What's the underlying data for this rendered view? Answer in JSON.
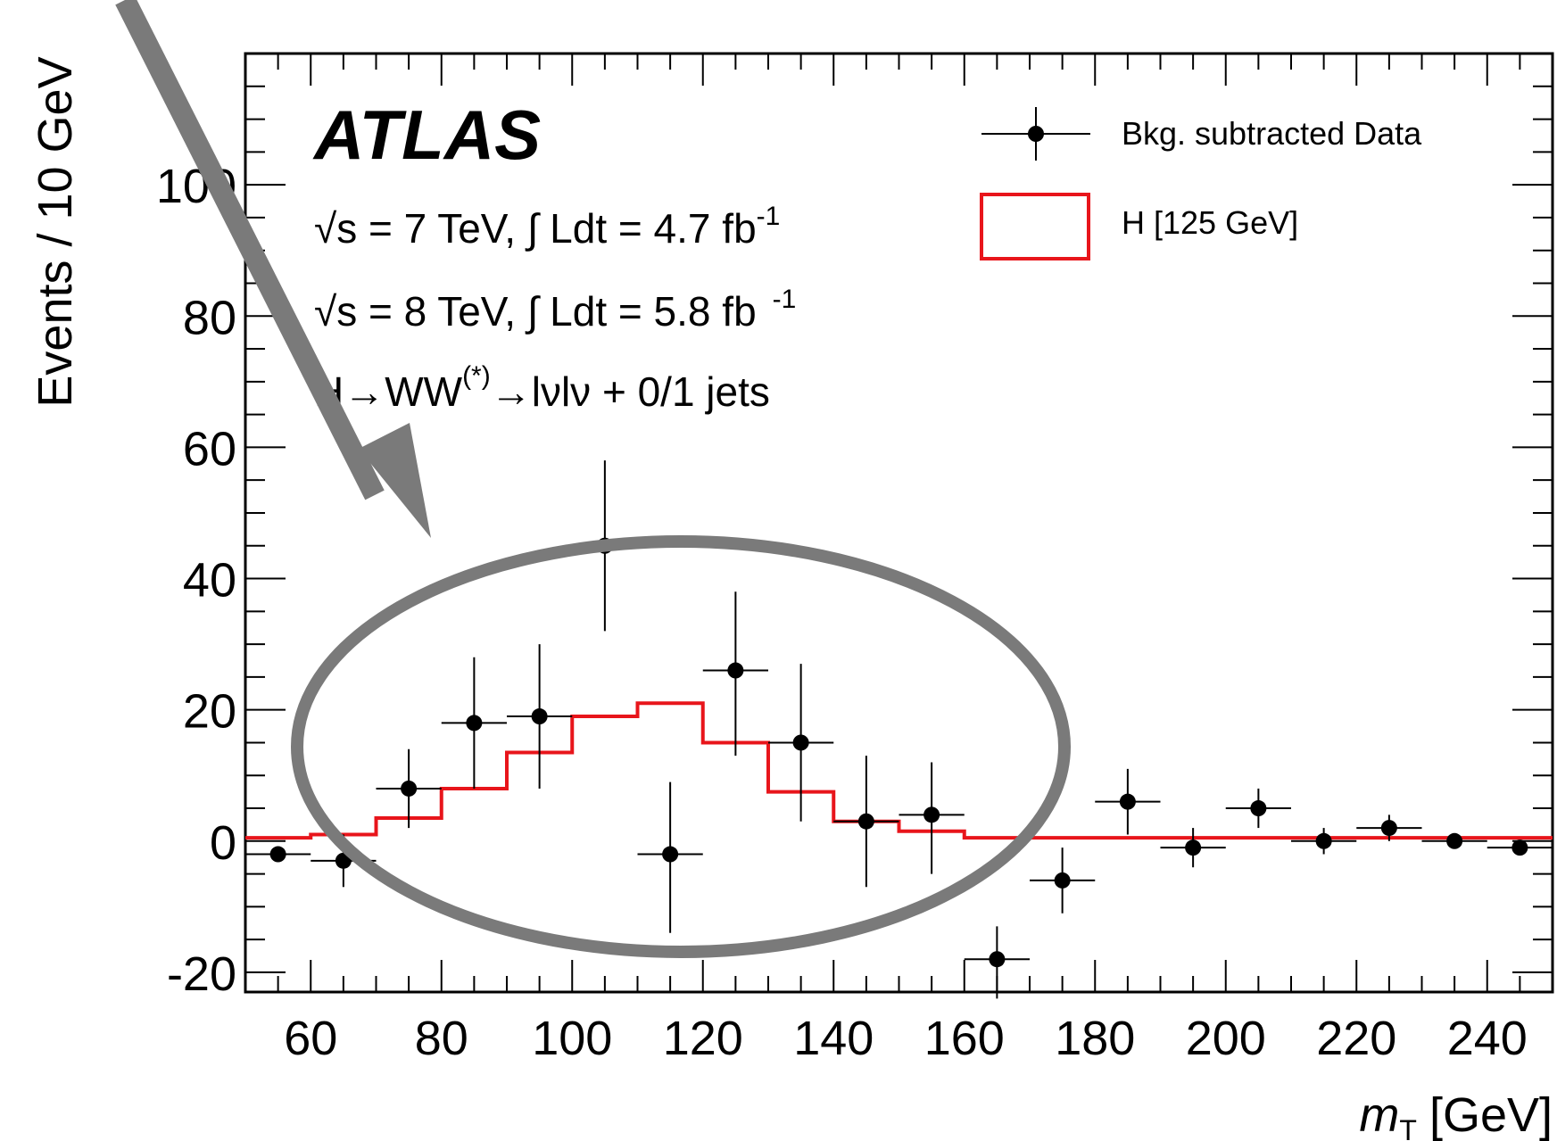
{
  "chart_data": {
    "type": "scatter",
    "title": "",
    "xlabel": "[GeV]",
    "xlabel_symbol": "m",
    "xlabel_sub": "T",
    "ylabel": "Events / 10 GeV",
    "xlim": [
      50,
      250
    ],
    "ylim": [
      -23,
      120
    ],
    "x_ticks": [
      60,
      80,
      100,
      120,
      140,
      160,
      180,
      200,
      220,
      240
    ],
    "y_ticks": [
      -20,
      0,
      20,
      40,
      60,
      80,
      100
    ],
    "legend_position": "top-right",
    "colors": {
      "data": "#000000",
      "signal": "#e8151b",
      "annotation": "#7a7a7a"
    },
    "series": [
      {
        "name": "Bkg. subtracted Data",
        "kind": "points",
        "x": [
          55,
          65,
          75,
          85,
          95,
          105,
          115,
          125,
          135,
          145,
          155,
          165,
          175,
          185,
          195,
          205,
          215,
          225,
          235,
          245
        ],
        "y": [
          -2,
          -3,
          8,
          18,
          19,
          45,
          -2,
          26,
          15,
          3,
          4,
          -18,
          -6,
          6,
          -1,
          5,
          0,
          2,
          0,
          -1
        ],
        "err_lo": [
          1,
          4,
          6,
          10,
          11,
          13,
          12,
          13,
          12,
          10,
          9,
          6,
          5,
          5,
          3,
          3,
          2,
          2,
          1,
          1
        ],
        "err_hi": [
          1,
          4,
          6,
          10,
          11,
          13,
          11,
          12,
          12,
          10,
          8,
          5,
          5,
          5,
          3,
          3,
          2,
          2,
          1,
          1
        ]
      },
      {
        "name": "H [125 GeV]",
        "kind": "step",
        "edges": [
          50,
          60,
          70,
          80,
          90,
          100,
          110,
          120,
          130,
          140,
          150,
          160,
          170,
          180,
          190,
          200,
          210,
          220,
          230,
          240,
          250
        ],
        "values": [
          0.5,
          1,
          3.5,
          8,
          13.5,
          19,
          21,
          15,
          7.5,
          3,
          1.5,
          0.5,
          0.5,
          0.5,
          0.5,
          0.5,
          0.5,
          0.5,
          0.5,
          0.5
        ]
      }
    ],
    "annotations": {
      "brand": "ATLAS",
      "line1_pre": "√s = 7 TeV, ∫ Ldt = 4.7 fb",
      "line1_sup": "-1",
      "line2_pre": "√s = 8 TeV, ∫ Ldt = 5.8 fb",
      "line2_sup": "-1",
      "line3_pre": "H→WW",
      "line3_sup": "(*)",
      "line3_post": "→lνlν + 0/1 jets"
    }
  }
}
